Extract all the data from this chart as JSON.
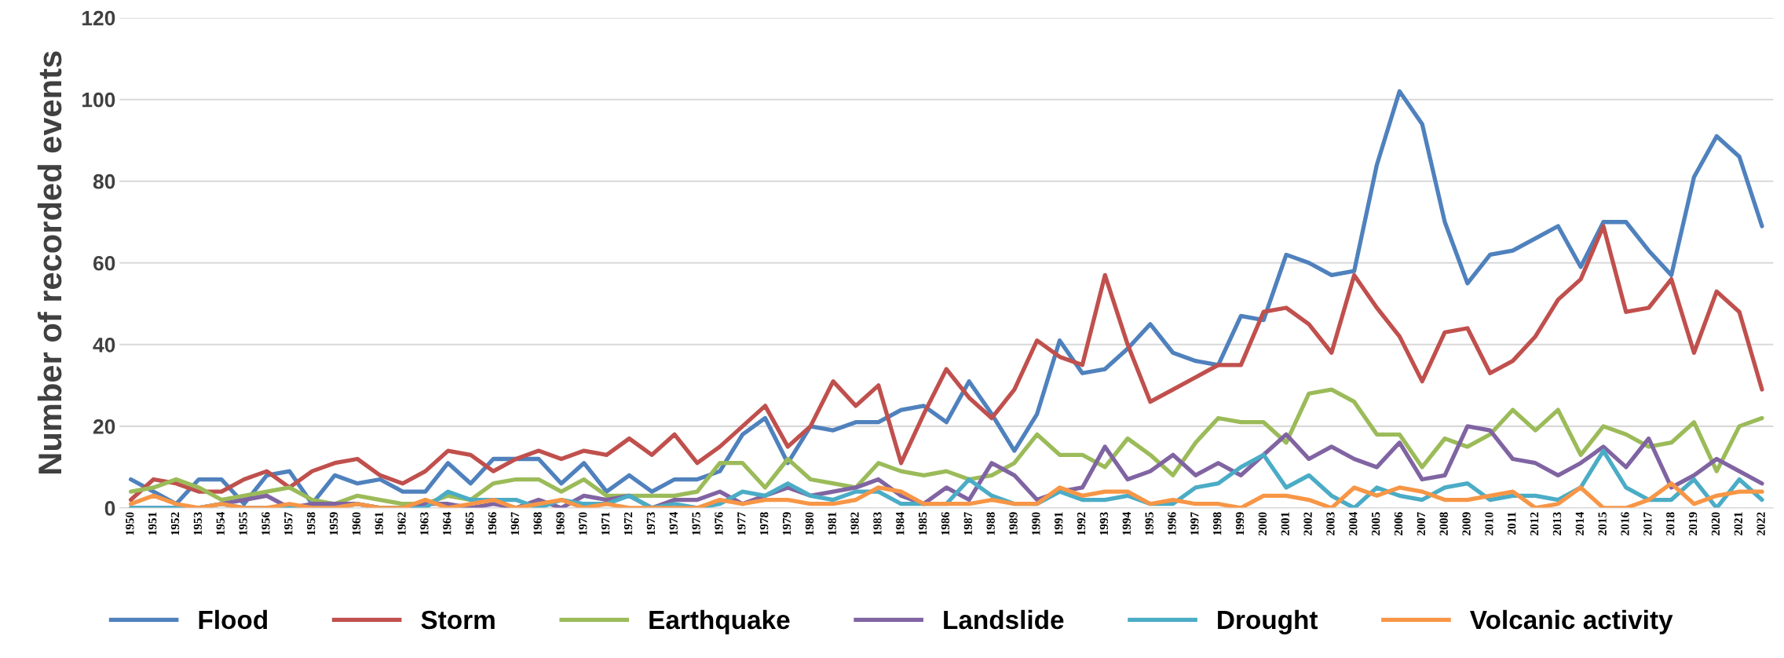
{
  "chart_data": {
    "type": "line",
    "ylabel": "Number of recorded events",
    "categories": [
      "1950",
      "1951",
      "1952",
      "1953",
      "1954",
      "1955",
      "1956",
      "1957",
      "1958",
      "1959",
      "1960",
      "1961",
      "1962",
      "1963",
      "1964",
      "1965",
      "1966",
      "1967",
      "1968",
      "1969",
      "1970",
      "1971",
      "1972",
      "1973",
      "1974",
      "1975",
      "1976",
      "1977",
      "1978",
      "1979",
      "1980",
      "1981",
      "1982",
      "1983",
      "1984",
      "1985",
      "1986",
      "1987",
      "1988",
      "1989",
      "1990",
      "1991",
      "1992",
      "1993",
      "1994",
      "1995",
      "1996",
      "1997",
      "1998",
      "1999",
      "2000",
      "2001",
      "2002",
      "2003",
      "2004",
      "2005",
      "2006",
      "2007",
      "2008",
      "2009",
      "2010",
      "2011",
      "2012",
      "2013",
      "2014",
      "2015",
      "2016",
      "2017",
      "2018",
      "2019",
      "2020",
      "2021",
      "2022"
    ],
    "series": [
      {
        "name": "Flood",
        "color": "#4f81bd",
        "values": [
          7,
          4,
          1,
          7,
          7,
          1,
          8,
          9,
          1,
          8,
          6,
          7,
          4,
          4,
          11,
          6,
          12,
          12,
          12,
          6,
          11,
          4,
          8,
          4,
          7,
          7,
          9,
          18,
          22,
          11,
          20,
          19,
          21,
          21,
          24,
          25,
          21,
          31,
          23,
          14,
          23,
          41,
          33,
          34,
          39,
          45,
          38,
          36,
          35,
          47,
          46,
          62,
          60,
          57,
          58,
          84,
          102,
          94,
          70,
          55,
          62,
          63,
          66,
          69,
          59,
          70,
          70,
          63,
          57,
          81,
          91,
          86,
          69
        ]
      },
      {
        "name": "Storm",
        "color": "#c0504d",
        "values": [
          2,
          7,
          6,
          4,
          4,
          7,
          9,
          5,
          9,
          11,
          12,
          8,
          6,
          9,
          14,
          13,
          9,
          12,
          14,
          12,
          14,
          13,
          17,
          13,
          18,
          11,
          15,
          20,
          25,
          15,
          20,
          31,
          25,
          30,
          11,
          23,
          34,
          27,
          22,
          29,
          41,
          37,
          35,
          57,
          40,
          26,
          29,
          32,
          35,
          35,
          48,
          49,
          45,
          38,
          57,
          49,
          42,
          31,
          43,
          44,
          33,
          36,
          42,
          51,
          56,
          69,
          48,
          49,
          56,
          38,
          53,
          48,
          29
        ]
      },
      {
        "name": "Earthquake",
        "color": "#9bbb59",
        "values": [
          4,
          5,
          7,
          5,
          2,
          3,
          4,
          5,
          2,
          1,
          3,
          2,
          1,
          1,
          3,
          2,
          6,
          7,
          7,
          4,
          7,
          3,
          3,
          3,
          3,
          4,
          11,
          11,
          5,
          12,
          7,
          6,
          5,
          11,
          9,
          8,
          9,
          7,
          8,
          11,
          18,
          13,
          13,
          10,
          17,
          13,
          8,
          16,
          22,
          21,
          21,
          16,
          28,
          29,
          26,
          18,
          18,
          10,
          17,
          15,
          18,
          24,
          19,
          24,
          13,
          20,
          18,
          15,
          16,
          21,
          9,
          20,
          22
        ]
      },
      {
        "name": "Landslide",
        "color": "#8064a2",
        "values": [
          0,
          0,
          0,
          0,
          1,
          2,
          3,
          0,
          1,
          1,
          1,
          0,
          0,
          1,
          1,
          0,
          1,
          0,
          2,
          0,
          3,
          2,
          3,
          0,
          2,
          2,
          4,
          1,
          3,
          5,
          3,
          4,
          5,
          7,
          3,
          1,
          5,
          2,
          11,
          8,
          2,
          4,
          5,
          15,
          7,
          9,
          13,
          8,
          11,
          8,
          13,
          18,
          12,
          15,
          12,
          10,
          16,
          7,
          8,
          20,
          19,
          12,
          11,
          8,
          11,
          15,
          10,
          17,
          5,
          8,
          12,
          9,
          6
        ]
      },
      {
        "name": "Drought",
        "color": "#4bacc6",
        "values": [
          0,
          0,
          0,
          0,
          1,
          0,
          0,
          0,
          0,
          0,
          1,
          0,
          0,
          0,
          4,
          2,
          2,
          2,
          0,
          2,
          1,
          1,
          3,
          0,
          1,
          0,
          1,
          4,
          3,
          6,
          3,
          2,
          4,
          4,
          1,
          1,
          1,
          7,
          3,
          1,
          1,
          4,
          2,
          2,
          3,
          1,
          1,
          5,
          6,
          10,
          13,
          5,
          8,
          3,
          0,
          5,
          3,
          2,
          5,
          6,
          2,
          3,
          3,
          2,
          5,
          14,
          5,
          2,
          2,
          7,
          0,
          7,
          2
        ]
      },
      {
        "name": "Volcanic activity",
        "color": "#f79646",
        "values": [
          1,
          3,
          1,
          0,
          1,
          0,
          0,
          1,
          0,
          0,
          1,
          0,
          0,
          2,
          0,
          1,
          2,
          0,
          1,
          2,
          0,
          1,
          0,
          0,
          0,
          0,
          2,
          1,
          2,
          2,
          1,
          1,
          2,
          5,
          4,
          1,
          1,
          1,
          2,
          1,
          1,
          5,
          3,
          4,
          4,
          1,
          2,
          1,
          1,
          0,
          3,
          3,
          2,
          0,
          5,
          3,
          5,
          4,
          2,
          2,
          3,
          4,
          0,
          1,
          5,
          0,
          0,
          2,
          6,
          1,
          3,
          4,
          4
        ]
      }
    ],
    "ylim": [
      0,
      120
    ],
    "yticks": [
      0,
      20,
      40,
      60,
      80,
      100,
      120
    ],
    "grid": "y",
    "legend": "bottom",
    "marker": "none",
    "line_style": "solid"
  }
}
